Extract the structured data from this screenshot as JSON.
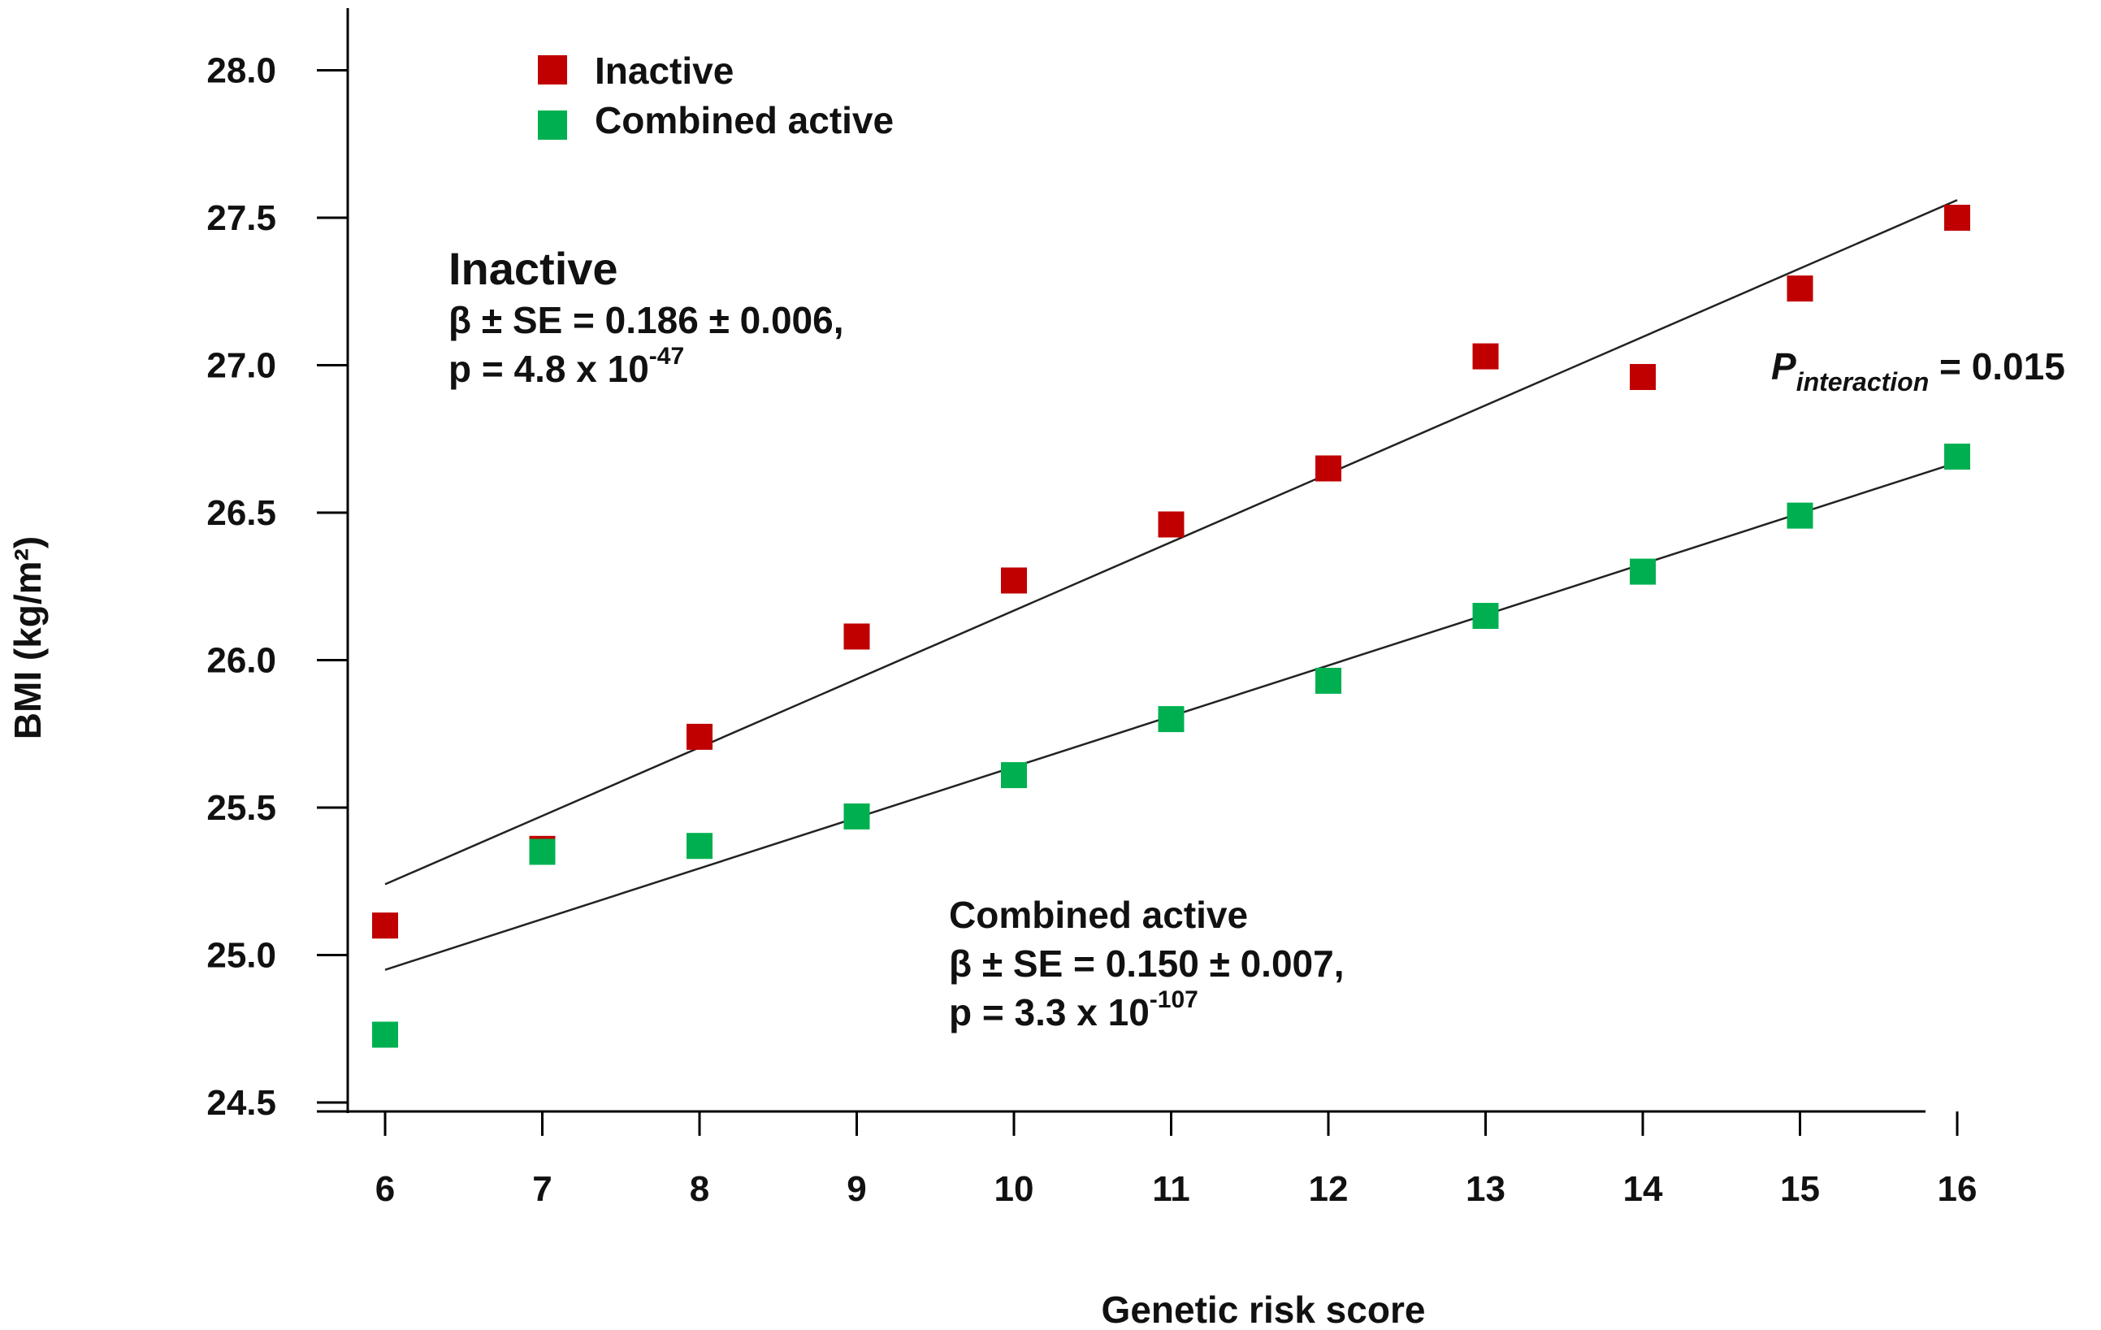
{
  "chart_data": {
    "type": "scatter",
    "title": "",
    "xlabel": "Genetic risk score",
    "ylabel": "BMI (kg/m²)",
    "xlim": [
      5.55,
      16.25
    ],
    "ylim": [
      24.5,
      28.25
    ],
    "x_ticks": [
      6,
      7,
      8,
      9,
      10,
      11,
      12,
      13,
      14,
      15,
      16
    ],
    "x_tick_labels": [
      "6",
      "7",
      "8",
      "9",
      "10",
      "11",
      "12",
      "13",
      "14",
      "15",
      "16"
    ],
    "y_ticks": [
      24.5,
      25.0,
      25.5,
      26.0,
      26.5,
      27.0,
      27.5,
      28.0
    ],
    "y_tick_labels": [
      "24.5",
      "25.0",
      "25.5",
      "26.0",
      "26.5",
      "27.0",
      "27.5",
      "28.0"
    ],
    "grid": false,
    "legend_position": "top-left",
    "series": [
      {
        "name": "Inactive",
        "color": "#c00000",
        "x": [
          6,
          7,
          8,
          9,
          10,
          11,
          12,
          13,
          14,
          15,
          16
        ],
        "y": [
          25.1,
          25.36,
          25.74,
          26.08,
          26.27,
          26.46,
          26.65,
          27.03,
          26.96,
          27.26,
          27.5
        ],
        "fit_line": {
          "x": [
            6,
            16
          ],
          "y": [
            25.24,
            27.56
          ]
        }
      },
      {
        "name": "Combined active",
        "color": "#00b050",
        "x": [
          6,
          7,
          8,
          9,
          10,
          11,
          12,
          13,
          14,
          15,
          16
        ],
        "y": [
          24.73,
          25.35,
          25.37,
          25.47,
          25.61,
          25.8,
          25.93,
          26.15,
          26.3,
          26.49,
          26.69
        ],
        "fit_line": {
          "x": [
            6,
            16
          ],
          "y": [
            24.95,
            26.67
          ]
        }
      }
    ],
    "annotations": {
      "inactive": {
        "title": "Inactive",
        "line1": "β ± SE = 0.186  ±  0.006,",
        "p_prefix": "p = 4.8 x 10",
        "p_exp": "-47"
      },
      "active": {
        "title": "Combined active",
        "line1": "β ± SE = 0.150  ±  0.007,",
        "p_prefix": "p = 3.3 x 10",
        "p_exp": "-107"
      },
      "interaction": {
        "symbol": "P",
        "subscript": "interaction",
        "value": " =  0.015"
      }
    }
  }
}
